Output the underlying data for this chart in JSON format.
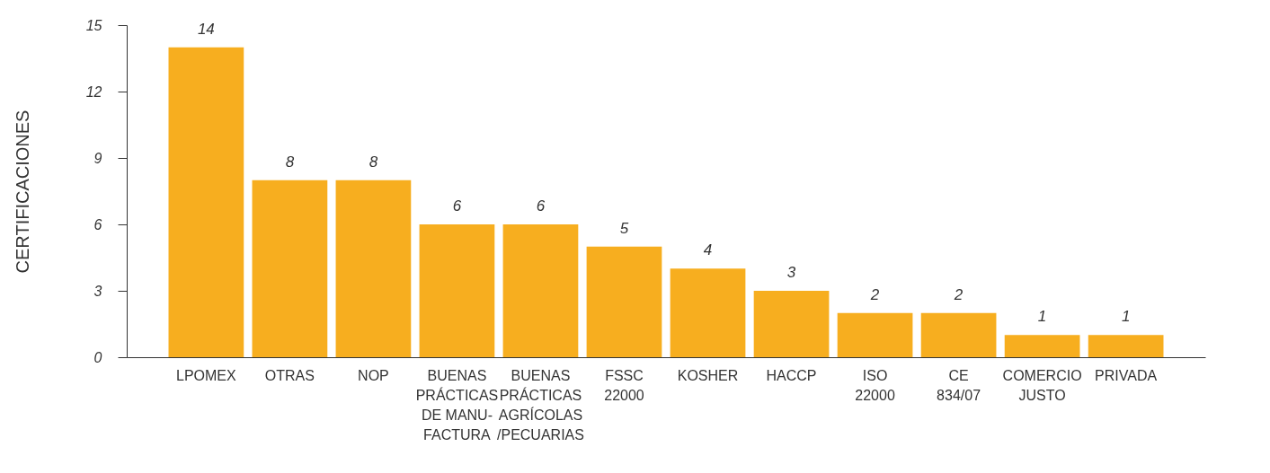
{
  "chart_data": {
    "type": "bar",
    "ylabel": "CERTIFICACIONES",
    "categories": [
      "LPOMEX",
      "OTRAS",
      "NOP",
      "BUENAS\nPRÁCTICAS\nDE MANU-\nFACTURA",
      "BUENAS\nPRÁCTICAS\nAGRÍCOLAS\n/PECUARIAS",
      "FSSC\n22000",
      "KOSHER",
      "HACCP",
      "ISO\n22000",
      "CE\n834/07",
      "COMERCIO\nJUSTO",
      "PRIVADA"
    ],
    "values": [
      14,
      8,
      8,
      6,
      6,
      5,
      4,
      3,
      2,
      2,
      1,
      1
    ],
    "color": "#f7ae1f",
    "ylim": [
      0,
      15
    ],
    "yticks": [
      0,
      3,
      6,
      9,
      12,
      15
    ],
    "grid": false,
    "data_labels": true
  }
}
